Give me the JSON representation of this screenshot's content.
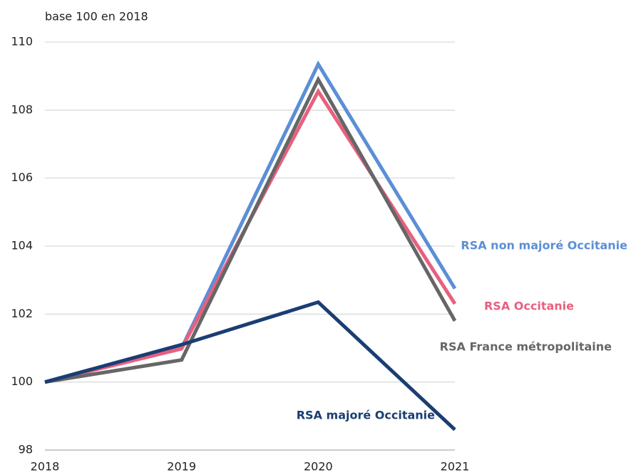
{
  "chart_data": {
    "type": "line",
    "subtitle": "base 100 en 2018",
    "x": [
      2018,
      2019,
      2020,
      2021
    ],
    "xlim": [
      2018,
      2021
    ],
    "xticks": [
      2018,
      2019,
      2020,
      2021
    ],
    "ylim": [
      98,
      110
    ],
    "yticks": [
      98,
      100,
      102,
      104,
      106,
      108,
      110
    ],
    "grid": true,
    "series": [
      {
        "name": "RSA non majoré Occitanie",
        "color": "#5b8fd6",
        "values": [
          100,
          101.0,
          109.35,
          102.75
        ]
      },
      {
        "name": "RSA Occitanie",
        "color": "#e8607f",
        "values": [
          100,
          100.98,
          108.55,
          102.3
        ]
      },
      {
        "name": "RSA France métropolitaine",
        "color": "#666666",
        "values": [
          100,
          100.65,
          108.9,
          101.8
        ]
      },
      {
        "name": "RSA majoré Occitanie",
        "color": "#1a3e73",
        "values": [
          100,
          101.1,
          102.35,
          98.6
        ]
      }
    ]
  }
}
